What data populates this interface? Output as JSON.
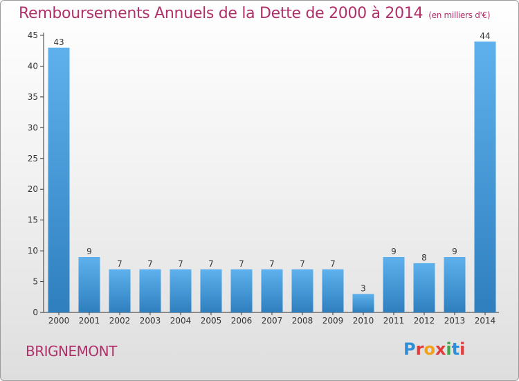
{
  "header": {
    "title": "Remboursements Annuels de la Dette de 2000 à 2014",
    "unit": "(en milliers d'€)"
  },
  "footer": {
    "commune": "BRIGNEMONT",
    "brand": "Proxiti",
    "brand_letters": [
      {
        "ch": "P",
        "color": "#2e8fd8"
      },
      {
        "ch": "r",
        "color": "#e23b3b"
      },
      {
        "ch": "o",
        "color": "#f2a21a"
      },
      {
        "ch": "x",
        "color": "#e23b3b"
      },
      {
        "ch": "i",
        "color": "#3aa84a"
      },
      {
        "ch": "t",
        "color": "#2e8fd8"
      },
      {
        "ch": "i",
        "color": "#e23b3b"
      }
    ]
  },
  "colors": {
    "bar_top": "#5eb1ec",
    "bar_bottom": "#2f7fbf",
    "title": "#b0306a",
    "axis": "#333333"
  },
  "chart_data": {
    "type": "bar",
    "categories": [
      "2000",
      "2001",
      "2002",
      "2003",
      "2004",
      "2005",
      "2006",
      "2007",
      "2008",
      "2009",
      "2010",
      "2011",
      "2012",
      "2013",
      "2014"
    ],
    "values": [
      43,
      9,
      7,
      7,
      7,
      7,
      7,
      7,
      7,
      7,
      3,
      9,
      8,
      9,
      44
    ],
    "ylim": [
      0,
      45
    ],
    "yticks": [
      0,
      5,
      10,
      15,
      20,
      25,
      30,
      35,
      40,
      45
    ],
    "grid": false,
    "data_labels": true
  }
}
